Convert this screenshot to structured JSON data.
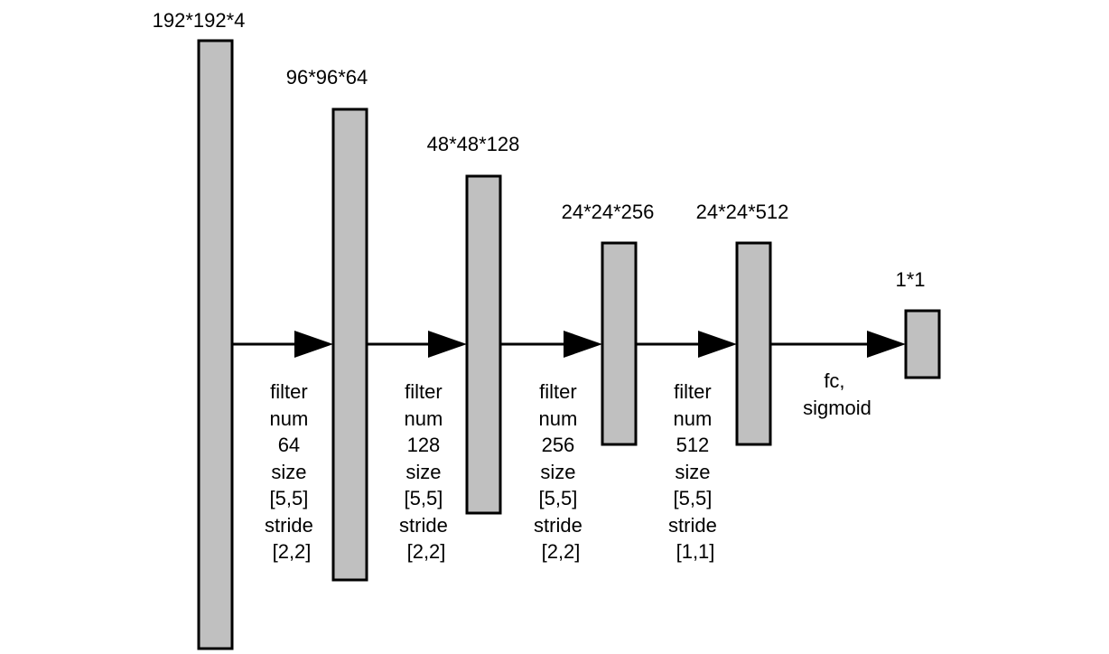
{
  "colors": {
    "layer_fill": "#c0c0c0",
    "stroke": "#000000",
    "background": "#ffffff"
  },
  "layers": [
    {
      "dims": "192*192*4"
    },
    {
      "dims": "96*96*64"
    },
    {
      "dims": "48*48*128"
    },
    {
      "dims": "24*24*256"
    },
    {
      "dims": "24*24*512"
    },
    {
      "dims": "1*1"
    }
  ],
  "operations": [
    {
      "lines": [
        "filter",
        "num",
        "64",
        "size",
        "[5,5]",
        "stride",
        "[2,2]"
      ]
    },
    {
      "lines": [
        "filter",
        "num",
        "128",
        "size",
        "[5,5]",
        "stride",
        "[2,2]"
      ]
    },
    {
      "lines": [
        "filter",
        "num",
        "256",
        "size",
        "[5,5]",
        "stride",
        "[2,2]"
      ]
    },
    {
      "lines": [
        "filter",
        "num",
        "512",
        "size",
        "[5,5]",
        "stride",
        "[1,1]"
      ]
    },
    {
      "lines": [
        "fc,",
        "sigmoid"
      ]
    }
  ]
}
